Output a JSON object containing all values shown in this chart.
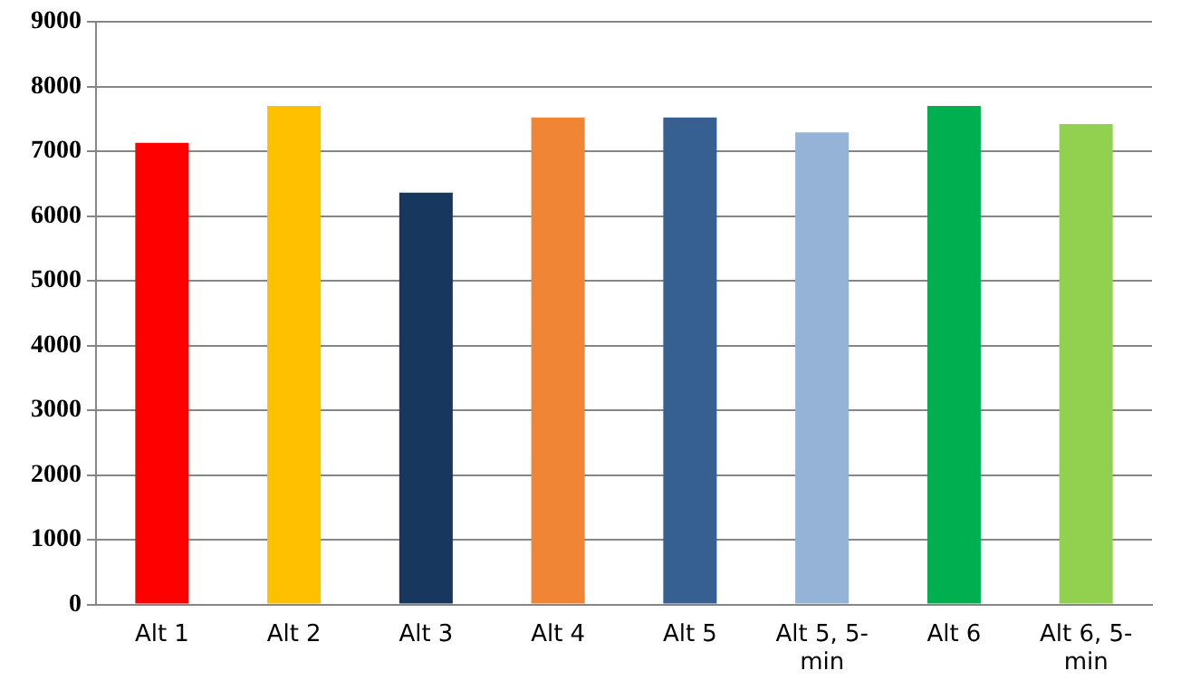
{
  "chart_data": {
    "type": "bar",
    "categories": [
      "Alt 1",
      "Alt 2",
      "Alt 3",
      "Alt 4",
      "Alt 5",
      "Alt 5, 5-min",
      "Alt 6",
      "Alt 6, 5-min"
    ],
    "values": [
      7130,
      7700,
      6360,
      7520,
      7520,
      7290,
      7700,
      7420
    ],
    "colors": [
      "#ff0000",
      "#ffc000",
      "#17375e",
      "#f08535",
      "#366092",
      "#95b3d7",
      "#00b050",
      "#92d050"
    ],
    "ylim": [
      0,
      9000
    ],
    "yticks": [
      0,
      1000,
      2000,
      3000,
      4000,
      5000,
      6000,
      7000,
      8000,
      9000
    ],
    "grid": "y",
    "legend": false
  }
}
